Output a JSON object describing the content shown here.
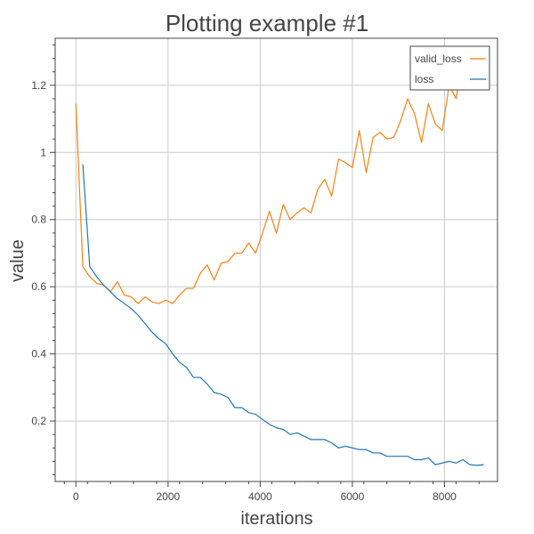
{
  "chart_data": {
    "type": "line",
    "title": "Plotting example #1",
    "xlabel": "iterations",
    "ylabel": "value",
    "xlim": [
      -450,
      9150
    ],
    "ylim": [
      0.02,
      1.34
    ],
    "xticks": [
      0,
      2000,
      4000,
      6000,
      8000
    ],
    "xtick_labels": [
      "0",
      "2000",
      "4000",
      "6000",
      "8000"
    ],
    "yticks": [
      0.2,
      0.4,
      0.6,
      0.8,
      1.0,
      1.2
    ],
    "ytick_labels": [
      "0.2",
      "0.4",
      "0.6",
      "0.8",
      "1",
      "1.2"
    ],
    "grid": true,
    "legend_position": "top-right",
    "series": [
      {
        "name": "valid_loss",
        "color": "#ff7f0e",
        "x": [
          0,
          150,
          300,
          450,
          600,
          750,
          900,
          1050,
          1200,
          1350,
          1500,
          1650,
          1800,
          1950,
          2100,
          2250,
          2400,
          2550,
          2700,
          2850,
          3000,
          3150,
          3300,
          3450,
          3600,
          3750,
          3900,
          4050,
          4200,
          4350,
          4500,
          4650,
          4800,
          4950,
          5100,
          5250,
          5400,
          5550,
          5700,
          5850,
          6000,
          6150,
          6300,
          6450,
          6600,
          6750,
          6900,
          7050,
          7200,
          7350,
          7500,
          7650,
          7800,
          7950,
          8100,
          8250,
          8400
        ],
        "values": [
          1.145,
          0.66,
          0.63,
          0.61,
          0.605,
          0.585,
          0.615,
          0.575,
          0.57,
          0.55,
          0.57,
          0.555,
          0.55,
          0.56,
          0.55,
          0.575,
          0.595,
          0.595,
          0.64,
          0.665,
          0.62,
          0.67,
          0.675,
          0.7,
          0.7,
          0.73,
          0.7,
          0.76,
          0.825,
          0.76,
          0.845,
          0.8,
          0.82,
          0.835,
          0.82,
          0.89,
          0.92,
          0.87,
          0.98,
          0.97,
          0.955,
          1.065,
          0.94,
          1.045,
          1.06,
          1.04,
          1.045,
          1.095,
          1.16,
          1.115,
          1.03,
          1.145,
          1.085,
          1.065,
          1.2,
          1.16,
          1.28
        ]
      },
      {
        "name": "loss",
        "color": "#1f77b4",
        "x": [
          150,
          300,
          450,
          600,
          750,
          900,
          1050,
          1200,
          1350,
          1500,
          1650,
          1800,
          1950,
          2100,
          2250,
          2400,
          2550,
          2700,
          2850,
          3000,
          3150,
          3300,
          3450,
          3600,
          3750,
          3900,
          4050,
          4200,
          4350,
          4500,
          4650,
          4800,
          4950,
          5100,
          5250,
          5400,
          5550,
          5700,
          5850,
          6000,
          6150,
          6300,
          6450,
          6600,
          6750,
          6900,
          7050,
          7200,
          7350,
          7500,
          7650,
          7800,
          7950,
          8100,
          8250,
          8400,
          8550,
          8700,
          8850
        ],
        "values": [
          0.965,
          0.66,
          0.63,
          0.605,
          0.585,
          0.565,
          0.55,
          0.535,
          0.515,
          0.49,
          0.465,
          0.445,
          0.43,
          0.4,
          0.375,
          0.36,
          0.33,
          0.33,
          0.31,
          0.285,
          0.28,
          0.27,
          0.24,
          0.24,
          0.225,
          0.22,
          0.205,
          0.19,
          0.18,
          0.175,
          0.16,
          0.165,
          0.155,
          0.145,
          0.145,
          0.145,
          0.135,
          0.12,
          0.125,
          0.12,
          0.115,
          0.115,
          0.105,
          0.105,
          0.095,
          0.095,
          0.095,
          0.095,
          0.085,
          0.085,
          0.09,
          0.07,
          0.075,
          0.08,
          0.075,
          0.085,
          0.07,
          0.068,
          0.07
        ]
      }
    ]
  }
}
